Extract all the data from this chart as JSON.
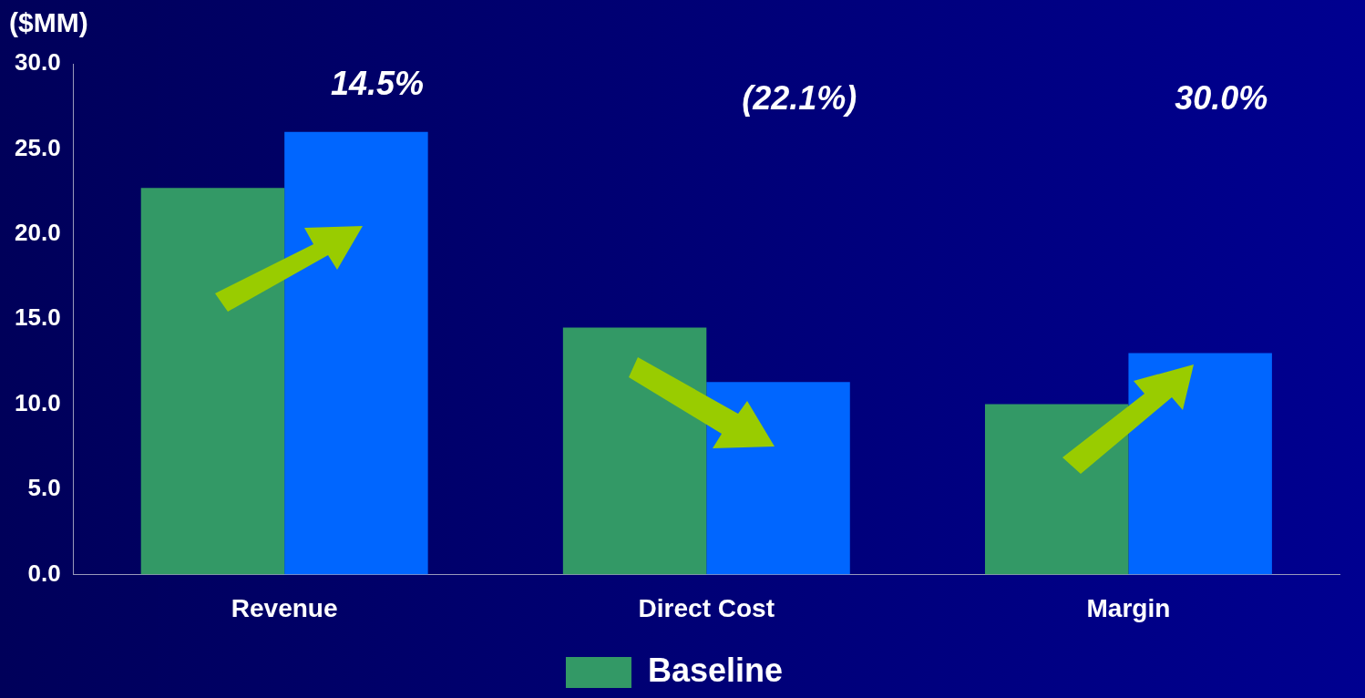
{
  "chart_data": {
    "type": "bar",
    "ylabel": "($MM)",
    "categories": [
      "Revenue",
      "Direct Cost",
      "Margin"
    ],
    "series": [
      {
        "name": "Baseline",
        "color": "#339966",
        "values": [
          22.7,
          14.5,
          10.0
        ]
      },
      {
        "color": "#0066ff",
        "values": [
          26.0,
          11.3,
          13.0
        ]
      }
    ],
    "ylim": [
      0,
      30
    ],
    "yticks": [
      {
        "value": 0,
        "label": "0.0"
      },
      {
        "value": 5,
        "label": "5.0"
      },
      {
        "value": 10,
        "label": "10.0"
      },
      {
        "value": 15,
        "label": "15.0"
      },
      {
        "value": 20,
        "label": "20.0"
      },
      {
        "value": 25,
        "label": "25.0"
      },
      {
        "value": 30,
        "label": "30.0"
      }
    ],
    "annotations": [
      "14.5%",
      "(22.1%)",
      "30.0%"
    ],
    "grid": false,
    "legend": "bottom"
  }
}
